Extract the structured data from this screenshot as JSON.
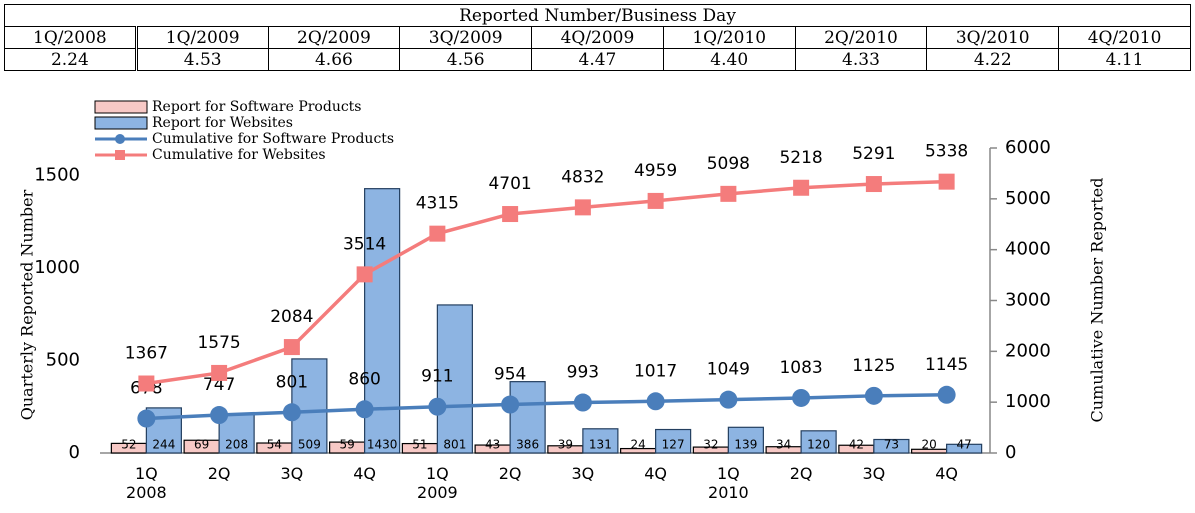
{
  "table": {
    "title": "Reported Number/Business Day",
    "columns": [
      "1Q/2008",
      "1Q/2009",
      "2Q/2009",
      "3Q/2009",
      "4Q/2009",
      "1Q/2010",
      "2Q/2010",
      "3Q/2010",
      "4Q/2010"
    ],
    "values": [
      "2.24",
      "4.53",
      "4.66",
      "4.56",
      "4.47",
      "4.40",
      "4.33",
      "4.22",
      "4.11"
    ]
  },
  "chart_data": {
    "type": "bar-line",
    "ylabel": "Quarterly Reported Number",
    "y2label": "Cumulative Number Reported",
    "categories": [
      "1Q\n2008",
      "2Q",
      "3Q",
      "4Q",
      "1Q\n2009",
      "2Q",
      "3Q",
      "4Q",
      "1Q\n2010",
      "2Q",
      "3Q",
      "4Q"
    ],
    "ylim": [
      0,
      1650
    ],
    "yticks": [
      0,
      500,
      1000,
      1500
    ],
    "y2lim": [
      0,
      6000
    ],
    "y2ticks": [
      0,
      1000,
      2000,
      3000,
      4000,
      5000,
      6000
    ],
    "legend": "top-left",
    "series": [
      {
        "name": "Report for Software Products",
        "kind": "bar",
        "color": "#f7c9c6",
        "values": [
          52,
          69,
          54,
          59,
          51,
          43,
          39,
          24,
          32,
          34,
          42,
          20
        ]
      },
      {
        "name": "Report for Websites",
        "kind": "bar",
        "color": "#8db4e2",
        "values": [
          244,
          208,
          509,
          1430,
          801,
          386,
          131,
          127,
          139,
          120,
          73,
          47
        ]
      },
      {
        "name": "Cumulative for Software Products",
        "kind": "line",
        "axis": "y2",
        "marker": "circle",
        "color": "#4a7ebb",
        "values": [
          678,
          747,
          801,
          860,
          911,
          954,
          993,
          1017,
          1049,
          1083,
          1125,
          1145
        ]
      },
      {
        "name": "Cumulative for Websites",
        "kind": "line",
        "axis": "y2",
        "marker": "square",
        "color": "#f47c7c",
        "values": [
          1367,
          1575,
          2084,
          3514,
          4315,
          4701,
          4832,
          4959,
          5098,
          5218,
          5291,
          5338
        ]
      }
    ]
  }
}
